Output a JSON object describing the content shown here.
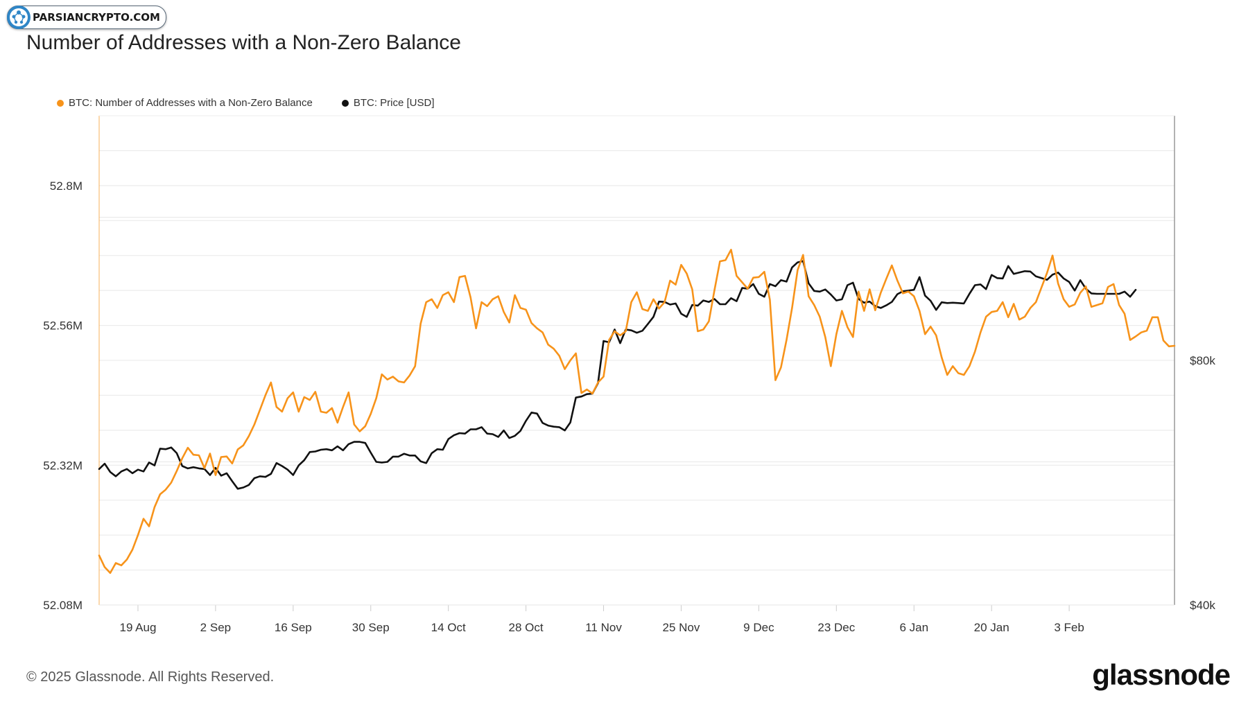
{
  "watermark": {
    "text": "PARSIANCRYPTO.COM"
  },
  "title": "Number of Addresses with a Non-Zero Balance",
  "footer": {
    "copyright": "© 2025 Glassnode. All Rights Reserved.",
    "brand": "glassnode"
  },
  "colors": {
    "addresses": "#f7931a",
    "price": "#111111",
    "grid": "#e8e8e8"
  },
  "chart_data": {
    "type": "line",
    "title": "Number of Addresses with a Non-Zero Balance",
    "legend": [
      "BTC: Number of Addresses with a Non-Zero Balance",
      "BTC: Price [USD]"
    ],
    "legend_position": "top-left",
    "grid": true,
    "x_start": "2024-08-12",
    "x_ticks": [
      {
        "date": "2024-08-19",
        "label": "19 Aug"
      },
      {
        "date": "2024-09-02",
        "label": "2 Sep"
      },
      {
        "date": "2024-09-16",
        "label": "16 Sep"
      },
      {
        "date": "2024-09-30",
        "label": "30 Sep"
      },
      {
        "date": "2024-10-14",
        "label": "14 Oct"
      },
      {
        "date": "2024-10-28",
        "label": "28 Oct"
      },
      {
        "date": "2024-11-11",
        "label": "11 Nov"
      },
      {
        "date": "2024-11-25",
        "label": "25 Nov"
      },
      {
        "date": "2024-12-09",
        "label": "9 Dec"
      },
      {
        "date": "2024-12-23",
        "label": "23 Dec"
      },
      {
        "date": "2025-01-06",
        "label": "6 Jan"
      },
      {
        "date": "2025-01-20",
        "label": "20 Jan"
      },
      {
        "date": "2025-02-03",
        "label": "3 Feb"
      }
    ],
    "y_left": {
      "range": [
        52.08,
        52.92
      ],
      "ticks": [
        {
          "value": 52.08,
          "label": "52.08M"
        },
        {
          "value": 52.32,
          "label": "52.32M"
        },
        {
          "value": 52.56,
          "label": "52.56M"
        },
        {
          "value": 52.8,
          "label": "52.8M"
        }
      ],
      "unit": "M"
    },
    "y_right": {
      "scale": "log",
      "range": [
        40000,
        160000
      ],
      "ticks": [
        {
          "value": 40000,
          "label": "$40k"
        },
        {
          "value": 80000,
          "label": "$80k"
        }
      ]
    },
    "series": [
      {
        "name": "BTC: Number of Addresses with a Non-Zero Balance",
        "axis": "left",
        "x_start": "2024-08-12",
        "values": [
          52.165,
          52.145,
          52.135,
          52.152,
          52.148,
          52.158,
          52.175,
          52.2,
          52.228,
          52.215,
          52.248,
          52.27,
          52.278,
          52.29,
          52.31,
          52.332,
          52.35,
          52.338,
          52.337,
          52.315,
          52.34,
          52.303,
          52.334,
          52.335,
          52.323,
          52.347,
          52.354,
          52.37,
          52.39,
          52.415,
          52.44,
          52.462,
          52.42,
          52.412,
          52.435,
          52.445,
          52.412,
          52.437,
          52.432,
          52.446,
          52.412,
          52.41,
          52.418,
          52.393,
          52.42,
          52.445,
          52.39,
          52.378,
          52.387,
          52.408,
          52.435,
          52.476,
          52.467,
          52.472,
          52.464,
          52.462,
          52.474,
          52.49,
          52.563,
          52.6,
          52.605,
          52.59,
          52.612,
          52.617,
          52.6,
          52.643,
          52.645,
          52.608,
          52.555,
          52.6,
          52.593,
          52.605,
          52.61,
          52.583,
          52.565,
          52.612,
          52.59,
          52.587,
          52.564,
          52.555,
          52.548,
          52.527,
          52.52,
          52.508,
          52.485,
          52.5,
          52.512,
          52.444,
          52.45,
          52.443,
          52.462,
          52.472,
          52.535,
          52.55,
          52.543,
          52.55,
          52.6,
          52.617,
          52.588,
          52.585,
          52.605,
          52.589,
          52.6,
          52.637,
          52.63,
          52.664,
          52.649,
          52.622,
          52.55,
          52.553,
          52.567,
          52.62,
          52.67,
          52.672,
          52.69,
          52.645,
          52.634,
          52.623,
          52.642,
          52.643,
          52.652,
          52.604,
          52.466,
          52.488,
          52.535,
          52.59,
          52.655,
          52.681,
          52.61,
          52.595,
          52.575,
          52.54,
          52.49,
          52.545,
          52.585,
          52.557,
          52.54,
          52.618,
          52.585,
          52.622,
          52.586,
          52.616,
          52.64,
          52.663,
          52.637,
          52.615,
          52.618,
          52.61,
          52.585,
          52.545,
          52.558,
          52.543,
          52.505,
          52.475,
          52.49,
          52.478,
          52.475,
          52.49,
          52.515,
          52.548,
          52.575,
          52.583,
          52.585,
          52.6,
          52.574,
          52.597,
          52.57,
          52.575,
          52.59,
          52.6,
          52.625,
          52.65,
          52.68,
          52.632,
          52.605,
          52.592,
          52.596,
          52.616,
          52.627,
          52.592,
          52.595,
          52.598,
          52.626,
          52.631,
          52.595,
          52.58,
          52.535,
          52.541,
          52.548,
          52.551,
          52.574,
          52.574,
          52.534,
          52.524,
          52.525
        ]
      },
      {
        "name": "BTC: Price [USD]",
        "axis": "right",
        "x_start": "2024-08-12",
        "values": [
          58800,
          59700,
          58300,
          57600,
          58400,
          58800,
          58100,
          58700,
          58400,
          59900,
          59400,
          62300,
          62200,
          62500,
          61500,
          59300,
          58900,
          59100,
          58900,
          58800,
          57800,
          59000,
          57700,
          58100,
          56800,
          55600,
          55800,
          56200,
          57300,
          57600,
          57500,
          58000,
          59800,
          59300,
          58700,
          57800,
          59400,
          60300,
          61700,
          61800,
          62100,
          62200,
          62000,
          62700,
          62000,
          63100,
          63500,
          63500,
          63300,
          61600,
          60000,
          59900,
          60000,
          60900,
          60900,
          61400,
          61100,
          61100,
          60100,
          59800,
          61500,
          62200,
          62100,
          64000,
          64700,
          65100,
          65000,
          65800,
          65800,
          66200,
          65000,
          64900,
          64400,
          65600,
          64200,
          64600,
          65500,
          67400,
          69000,
          68800,
          67000,
          66500,
          66300,
          66200,
          65600,
          67100,
          72000,
          72200,
          72700,
          72800,
          75000,
          84500,
          84200,
          87300,
          84000,
          87300,
          87100,
          86500,
          87000,
          88700,
          90500,
          94500,
          94400,
          93700,
          94000,
          91300,
          90500,
          93600,
          93400,
          94800,
          94400,
          95200,
          93800,
          93800,
          95400,
          94600,
          98200,
          98000,
          99300,
          96600,
          95800,
          99300,
          98700,
          100400,
          100000,
          104100,
          105600,
          106000,
          99500,
          97400,
          97200,
          97800,
          96400,
          94800,
          95100,
          99000,
          99700,
          95200,
          94200,
          94500,
          93300,
          92800,
          93500,
          94400,
          96500,
          97300,
          97500,
          97700,
          101300,
          96100,
          94700,
          92300,
          94300,
          94100,
          94200,
          94100,
          94000,
          96600,
          99000,
          99200,
          97900,
          101900,
          101000,
          100900,
          104500,
          102200,
          102600,
          103000,
          102900,
          101500,
          101000,
          100500,
          102000,
          102600,
          100900,
          99900,
          97500,
          100400,
          98000,
          96700,
          96600,
          96600,
          96600,
          96600,
          96600,
          97200,
          95800,
          97700
        ]
      }
    ]
  }
}
